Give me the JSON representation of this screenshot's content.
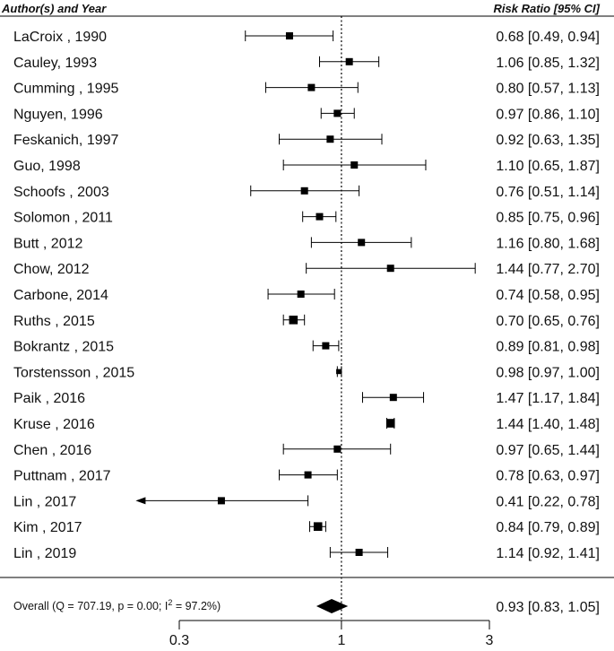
{
  "chart_data": {
    "type": "forest",
    "headers": {
      "study": "Author(s) and Year",
      "estimate": "Risk Ratio [95% CI]"
    },
    "x_scale": "log",
    "xlim": [
      0.3,
      3
    ],
    "x_ticks": [
      0.3,
      1,
      3
    ],
    "x_tick_labels": [
      "0.3",
      "1",
      "3"
    ],
    "reference_line": 1,
    "studies": [
      {
        "label": "LaCroix , 1990",
        "rr": 0.68,
        "lo": 0.49,
        "hi": 0.94,
        "text": "0.68 [0.49, 0.94]",
        "weight": 1
      },
      {
        "label": "Cauley, 1993",
        "rr": 1.06,
        "lo": 0.85,
        "hi": 1.32,
        "text": "1.06 [0.85, 1.32]",
        "weight": 1
      },
      {
        "label": "Cumming , 1995",
        "rr": 0.8,
        "lo": 0.57,
        "hi": 1.13,
        "text": "0.80 [0.57, 1.13]",
        "weight": 1
      },
      {
        "label": "Nguyen, 1996",
        "rr": 0.97,
        "lo": 0.86,
        "hi": 1.1,
        "text": "0.97 [0.86, 1.10]",
        "weight": 1
      },
      {
        "label": "Feskanich, 1997",
        "rr": 0.92,
        "lo": 0.63,
        "hi": 1.35,
        "text": "0.92 [0.63, 1.35]",
        "weight": 1
      },
      {
        "label": "Guo, 1998",
        "rr": 1.1,
        "lo": 0.65,
        "hi": 1.87,
        "text": "1.10 [0.65, 1.87]",
        "weight": 1
      },
      {
        "label": "Schoofs , 2003",
        "rr": 0.76,
        "lo": 0.51,
        "hi": 1.14,
        "text": "0.76 [0.51, 1.14]",
        "weight": 1
      },
      {
        "label": "Solomon , 2011",
        "rr": 0.85,
        "lo": 0.75,
        "hi": 0.96,
        "text": "0.85 [0.75, 0.96]",
        "weight": 1
      },
      {
        "label": "Butt , 2012",
        "rr": 1.16,
        "lo": 0.8,
        "hi": 1.68,
        "text": "1.16 [0.80, 1.68]",
        "weight": 1
      },
      {
        "label": "Chow, 2012",
        "rr": 1.44,
        "lo": 0.77,
        "hi": 2.7,
        "text": "1.44 [0.77, 2.70]",
        "weight": 1
      },
      {
        "label": "Carbone, 2014",
        "rr": 0.74,
        "lo": 0.58,
        "hi": 0.95,
        "text": "0.74 [0.58, 0.95]",
        "weight": 1
      },
      {
        "label": "Ruths , 2015",
        "rr": 0.7,
        "lo": 0.65,
        "hi": 0.76,
        "text": "0.70 [0.65, 0.76]",
        "weight": 1.2
      },
      {
        "label": "Bokrantz , 2015",
        "rr": 0.89,
        "lo": 0.81,
        "hi": 0.98,
        "text": "0.89 [0.81, 0.98]",
        "weight": 1
      },
      {
        "label": "Torstensson , 2015",
        "rr": 0.98,
        "lo": 0.97,
        "hi": 1.0,
        "text": "0.98 [0.97, 1.00]",
        "weight": 0.7
      },
      {
        "label": "Paik , 2016",
        "rr": 1.47,
        "lo": 1.17,
        "hi": 1.84,
        "text": "1.47 [1.17, 1.84]",
        "weight": 1
      },
      {
        "label": "Kruse , 2016",
        "rr": 1.44,
        "lo": 1.4,
        "hi": 1.48,
        "text": "1.44 [1.40, 1.48]",
        "weight": 1.2
      },
      {
        "label": "Chen , 2016",
        "rr": 0.97,
        "lo": 0.65,
        "hi": 1.44,
        "text": "0.97 [0.65, 1.44]",
        "weight": 1
      },
      {
        "label": "Puttnam , 2017",
        "rr": 0.78,
        "lo": 0.63,
        "hi": 0.97,
        "text": "0.78 [0.63, 0.97]",
        "weight": 1
      },
      {
        "label": "Lin , 2017",
        "rr": 0.41,
        "lo": 0.22,
        "hi": 0.78,
        "text": "0.41 [0.22, 0.78]",
        "weight": 1,
        "arrow_left": true
      },
      {
        "label": "Kim , 2017",
        "rr": 0.84,
        "lo": 0.79,
        "hi": 0.89,
        "text": "0.84 [0.79, 0.89]",
        "weight": 1.2
      },
      {
        "label": "Lin , 2019",
        "rr": 1.14,
        "lo": 0.92,
        "hi": 1.41,
        "text": "1.14 [0.92, 1.41]",
        "weight": 1
      }
    ],
    "overall": {
      "label_prefix": "Overall",
      "label_stats": "(Q = 707.19, p = 0.00; I",
      "label_sup": "2",
      "label_tail": " = 97.2%)",
      "rr": 0.93,
      "lo": 0.83,
      "hi": 1.05,
      "text": "0.93 [0.83, 1.05]"
    }
  }
}
